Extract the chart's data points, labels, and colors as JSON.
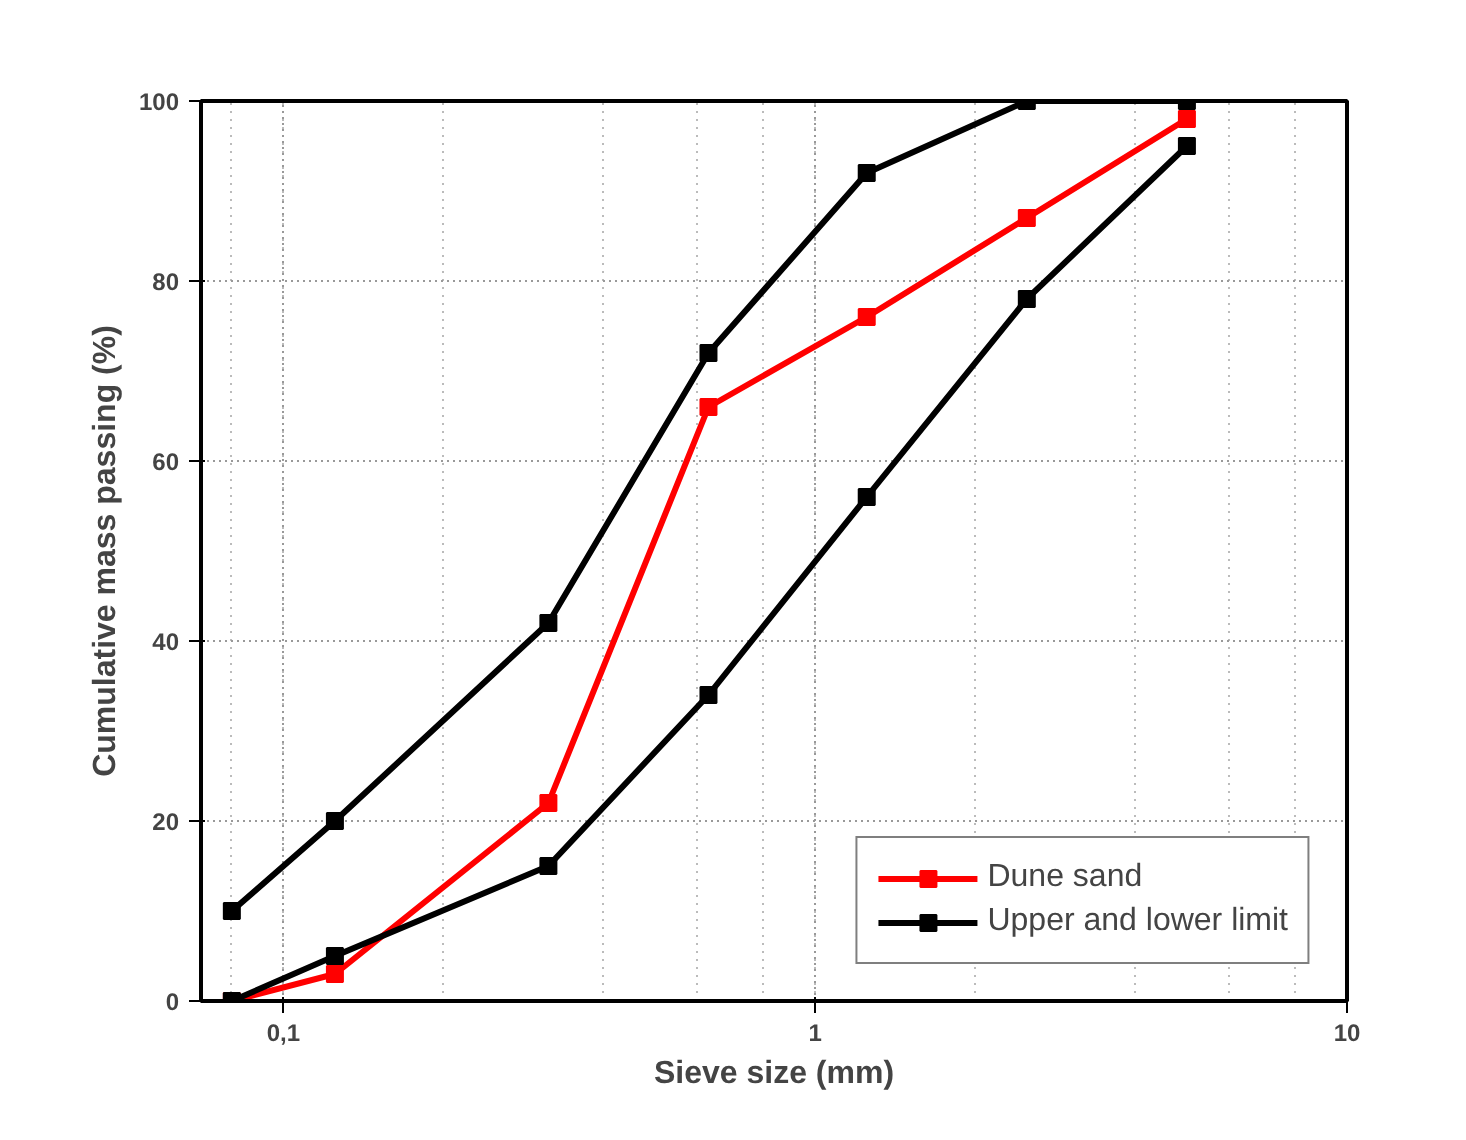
{
  "chart_data": {
    "type": "line",
    "xlabel": "Sieve size (mm)",
    "ylabel": "Cumulative mass passing (%)",
    "log": "x",
    "xlim": [
      0.07,
      10
    ],
    "ylim": [
      0,
      100
    ],
    "xticks": [
      {
        "value": 0.1,
        "label": "0,1"
      },
      1,
      10
    ],
    "yticks": [
      0,
      20,
      40,
      60,
      80,
      100
    ],
    "grid": true,
    "legend": "bottom right",
    "marker": "square",
    "line_style": "solid",
    "series": [
      {
        "name": "Dune sand",
        "color": "#ff0000",
        "x": [
          0.08,
          0.125,
          0.315,
          0.63,
          1.25,
          2.5,
          5
        ],
        "values": [
          0,
          3,
          22,
          66,
          76,
          87,
          98
        ]
      },
      {
        "name": "Upper and lower limit",
        "color": "#000000",
        "x": [
          0.08,
          0.125,
          0.315,
          0.63,
          1.25,
          2.5,
          5
        ],
        "values": [
          10,
          20,
          42,
          72,
          92,
          100,
          100
        ]
      },
      {
        "color": "#000000",
        "x": [
          0.08,
          0.125,
          0.315,
          0.63,
          1.25,
          2.5,
          5
        ],
        "values": [
          0,
          5,
          15,
          34,
          56,
          78,
          95
        ]
      }
    ]
  }
}
